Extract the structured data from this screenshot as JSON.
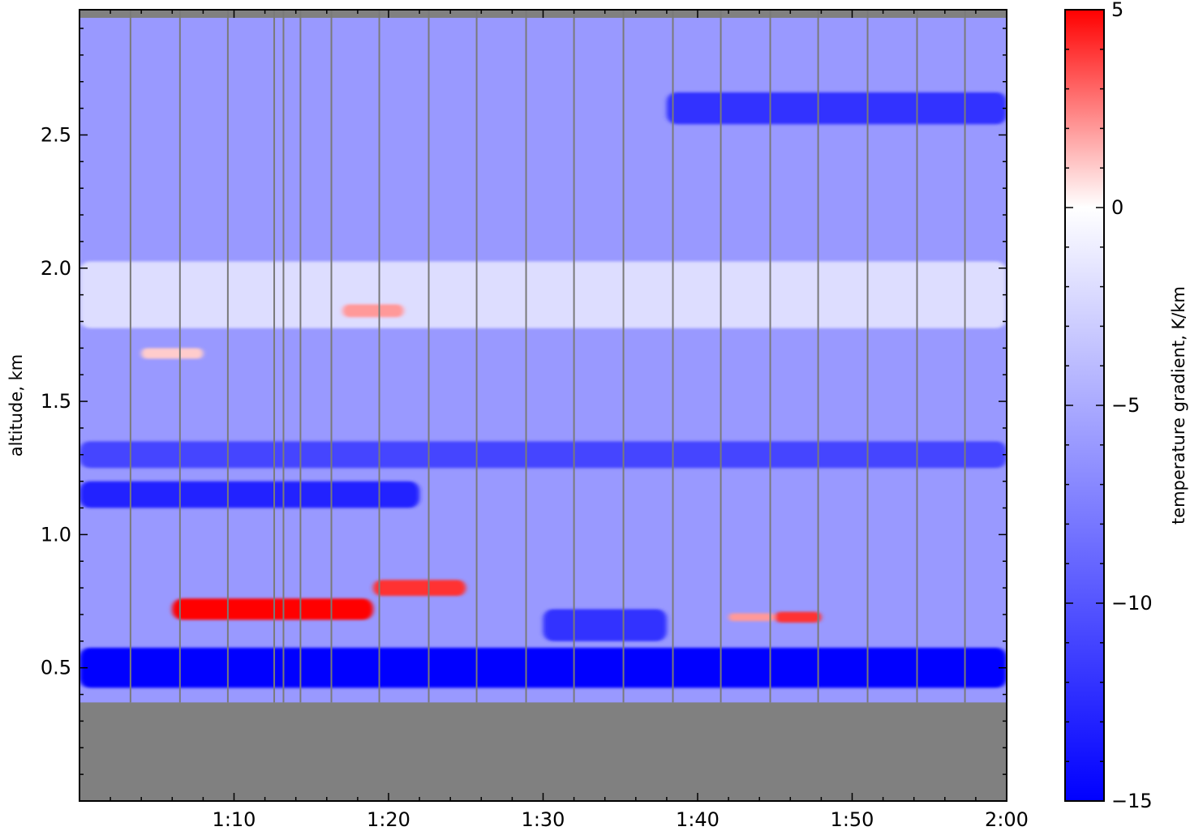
{
  "chart_data": [
    {
      "type": "heatmap",
      "title": "",
      "xlabel": "",
      "ylabel": "altitude, km",
      "x_tick_labels": [
        "1:10",
        "1:20",
        "1:30",
        "1:40",
        "1:50",
        "2:00"
      ],
      "x_ticks_minutes": [
        70,
        80,
        90,
        100,
        110,
        120
      ],
      "xlim_minutes": [
        60,
        120
      ],
      "y_ticks": [
        0.5,
        1.0,
        1.5,
        2.0,
        2.5
      ],
      "y_tick_labels": [
        "0.5",
        "1.0",
        "1.5",
        "2.0",
        "2.5"
      ],
      "ylim": [
        0.0,
        2.97
      ],
      "masked_below_km": 0.37,
      "mask_color": "#808080",
      "background_value": -6,
      "profile_times_minutes": [
        63.3,
        66.5,
        69.6,
        72.6,
        73.2,
        74.3,
        76.3,
        79.4,
        82.6,
        85.7,
        88.9,
        92.0,
        95.2,
        98.4,
        101.5,
        104.7,
        107.8,
        111.0,
        114.2,
        117.3
      ],
      "features": [
        {
          "label": "warm layer",
          "value": 5,
          "t_start": 66,
          "t_end": 79,
          "alt_center": 0.72,
          "thickness": 0.08
        },
        {
          "label": "warm layer",
          "value": 4,
          "t_start": 79,
          "t_end": 85,
          "alt_center": 0.8,
          "thickness": 0.06
        },
        {
          "label": "warm patch",
          "value": 4,
          "t_start": 105,
          "t_end": 108,
          "alt_center": 0.69,
          "thickness": 0.04
        },
        {
          "label": "warm patch",
          "value": 2,
          "t_start": 102,
          "t_end": 105,
          "alt_center": 0.69,
          "thickness": 0.03
        },
        {
          "label": "warm patch",
          "value": 2,
          "t_start": 77,
          "t_end": 81,
          "alt_center": 1.84,
          "thickness": 0.05
        },
        {
          "label": "warm patch",
          "value": 1,
          "t_start": 64,
          "t_end": 68,
          "alt_center": 1.68,
          "thickness": 0.04
        },
        {
          "label": "cold layer",
          "value": -15,
          "t_start": 60,
          "t_end": 120,
          "alt_center": 0.5,
          "thickness": 0.15
        },
        {
          "label": "cold layer",
          "value": -13,
          "t_start": 60,
          "t_end": 82,
          "alt_center": 1.15,
          "thickness": 0.1
        },
        {
          "label": "cold layer",
          "value": -12,
          "t_start": 90,
          "t_end": 98,
          "alt_center": 0.66,
          "thickness": 0.12
        },
        {
          "label": "cold layer",
          "value": -12,
          "t_start": 98,
          "t_end": 120,
          "alt_center": 2.6,
          "thickness": 0.12
        },
        {
          "label": "cold layer",
          "value": -11,
          "t_start": 60,
          "t_end": 120,
          "alt_center": 1.3,
          "thickness": 0.1
        },
        {
          "label": "mild layer",
          "value": -2,
          "t_start": 60,
          "t_end": 120,
          "alt_center": 1.9,
          "thickness": 0.25
        }
      ]
    },
    {
      "type": "colorbar",
      "label": "temperature gradient, K/km",
      "vmin": -15,
      "vmax": 5,
      "ticks": [
        5,
        0,
        -5,
        -10,
        -15
      ],
      "tick_labels": [
        "5",
        "0",
        "−5",
        "−10",
        "−15"
      ],
      "colormap": [
        "#0000ff",
        "#ffffff",
        "#ff0000"
      ]
    }
  ]
}
